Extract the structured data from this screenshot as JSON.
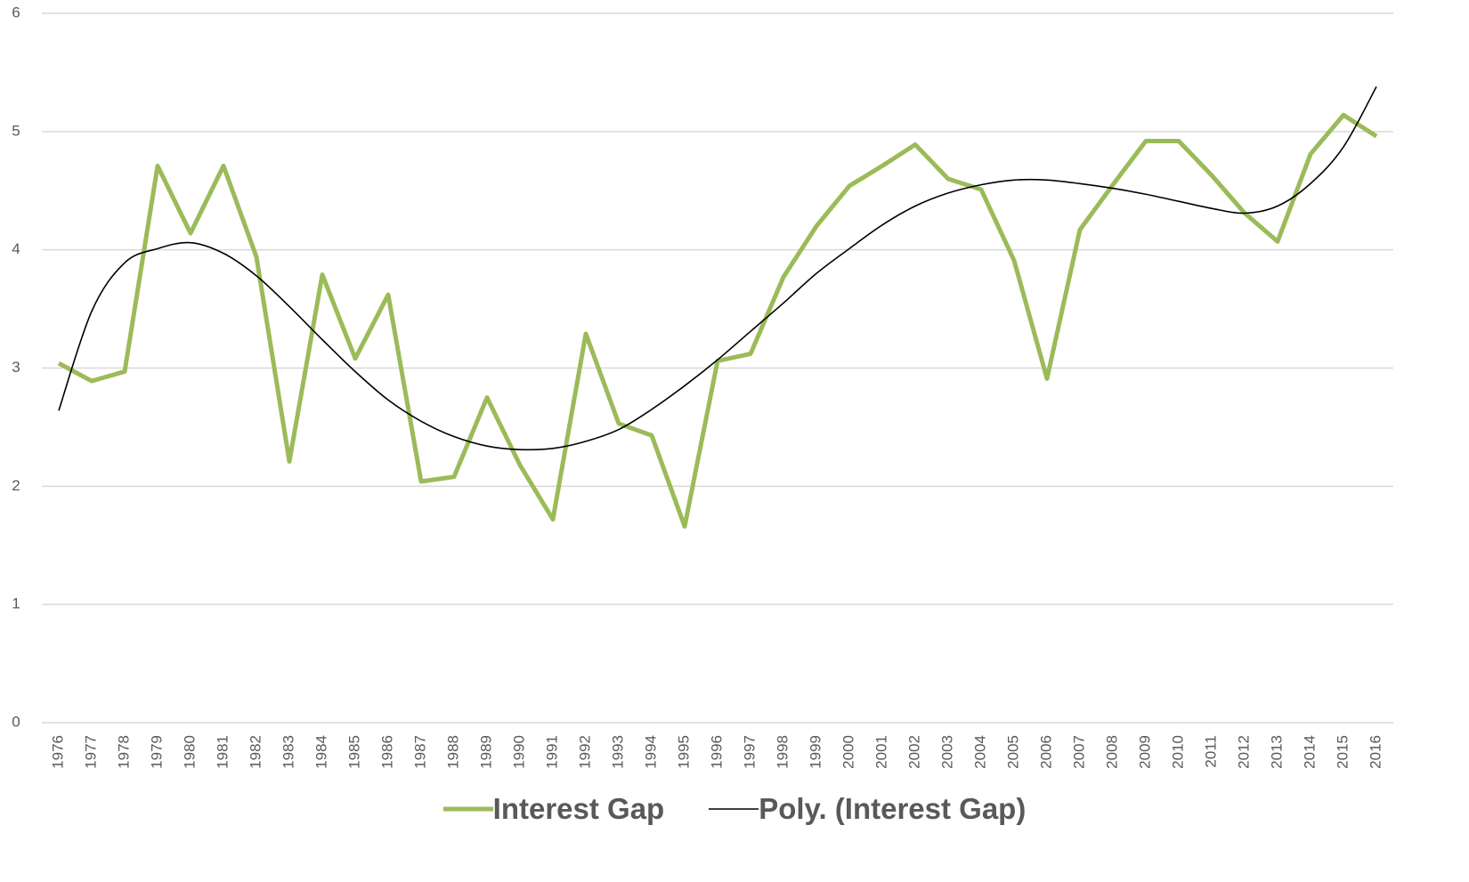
{
  "chart_data": {
    "type": "line",
    "categories": [
      "1976",
      "1977",
      "1978",
      "1979",
      "1980",
      "1981",
      "1982",
      "1983",
      "1984",
      "1985",
      "1986",
      "1987",
      "1988",
      "1989",
      "1990",
      "1991",
      "1992",
      "1993",
      "1994",
      "1995",
      "1996",
      "1997",
      "1998",
      "1999",
      "2000",
      "2001",
      "2002",
      "2003",
      "2004",
      "2005",
      "2006",
      "2007",
      "2008",
      "2009",
      "2010",
      "2011",
      "2012",
      "2013",
      "2014",
      "2015",
      "2016"
    ],
    "series": [
      {
        "name": "Interest Gap",
        "color": "#9bbb59",
        "line_width": 5,
        "smooth": false,
        "values": [
          3.04,
          2.89,
          2.97,
          4.71,
          4.14,
          4.71,
          3.94,
          2.21,
          3.79,
          3.08,
          3.62,
          2.04,
          2.08,
          2.75,
          2.18,
          1.72,
          3.29,
          2.53,
          2.43,
          1.66,
          3.06,
          3.12,
          3.77,
          4.2,
          4.54,
          4.71,
          4.89,
          4.6,
          4.51,
          3.91,
          2.91,
          4.17,
          4.55,
          4.92,
          4.92,
          4.63,
          4.31,
          4.07,
          4.81,
          5.14,
          4.96
        ]
      },
      {
        "name": "Poly. (Interest Gap)",
        "color": "#000000",
        "line_width": 1.6,
        "smooth": true,
        "values": [
          2.64,
          3.48,
          3.89,
          4.01,
          4.06,
          3.97,
          3.78,
          3.52,
          3.24,
          2.97,
          2.73,
          2.55,
          2.42,
          2.34,
          2.31,
          2.32,
          2.38,
          2.48,
          2.65,
          2.85,
          3.07,
          3.31,
          3.55,
          3.8,
          4.01,
          4.21,
          4.37,
          4.48,
          4.55,
          4.59,
          4.59,
          4.56,
          4.52,
          4.47,
          4.41,
          4.35,
          4.31,
          4.37,
          4.56,
          4.87,
          5.38
        ]
      }
    ],
    "ylim": [
      0,
      6
    ],
    "yticks": [
      0,
      1,
      2,
      3,
      4,
      5,
      6
    ],
    "grid": true,
    "legend": "bottom"
  }
}
